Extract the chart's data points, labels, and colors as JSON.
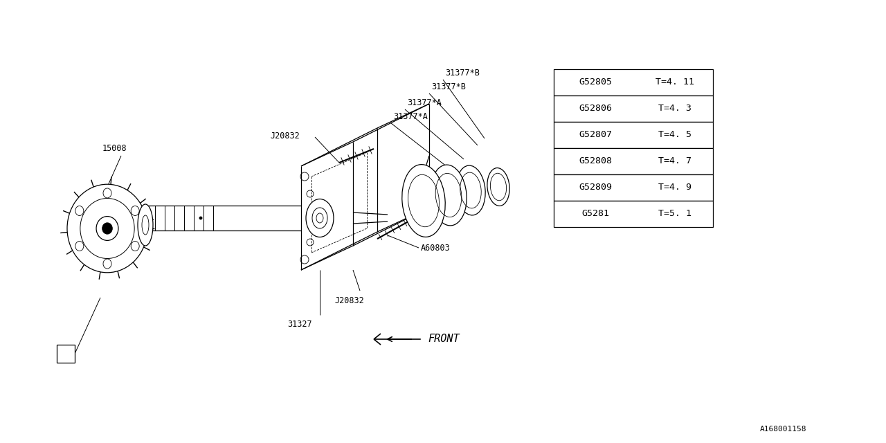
{
  "bg_color": "#ffffff",
  "line_color": "#000000",
  "footer_id": "A168001158",
  "table_data": [
    [
      "G52805",
      "T=4. 11"
    ],
    [
      "G52806",
      "T=4. 3"
    ],
    [
      "G52807",
      "T=4. 5"
    ],
    [
      "G52808",
      "T=4. 7"
    ],
    [
      "G52809",
      "T=4. 9"
    ],
    [
      "G5281",
      "T=5. 1"
    ]
  ],
  "font_size_label": 8.5,
  "font_size_table": 9.5
}
